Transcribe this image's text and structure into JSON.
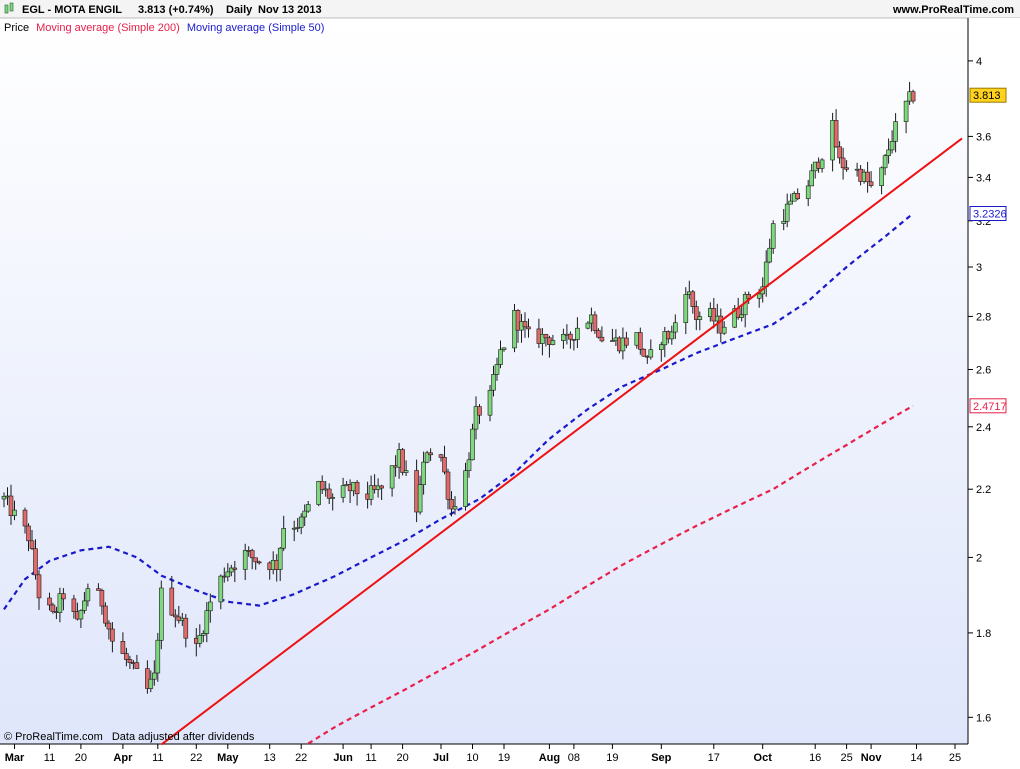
{
  "header": {
    "symbol": "EGL - MOTA ENGIL",
    "quote": "3.813 (+0.74%)",
    "period": "Daily",
    "date": "Nov 13 2013",
    "site": "www.ProRealTime.com"
  },
  "legend": {
    "price": "Price",
    "ma200": "Moving average (Simple 200)",
    "ma50": "Moving average (Simple 50)"
  },
  "footer": {
    "copyright": "© ProRealTime.com",
    "note": "Data adjusted after dividends"
  },
  "colors": {
    "up_candle": "#7ed87e",
    "down_candle": "#e06a6a",
    "ma50": "#1a1acc",
    "ma200": "#e8204a",
    "trendline": "#ee1111",
    "bg_top": "#ffffff",
    "bg_bottom": "#dfe6fb",
    "last_price_badge": "#ffd21e"
  },
  "chart_data": {
    "type": "candlestick",
    "scale": "log",
    "ylim": [
      1.55,
      4.2
    ],
    "y_ticks": [
      1.6,
      1.8,
      2,
      2.2,
      2.4,
      2.6,
      2.8,
      3,
      3.2,
      3.4,
      3.6,
      4
    ],
    "y_tick_labels": [
      "1.6",
      "1.8",
      "2",
      "2.2",
      "2.4",
      "2.6",
      "2.8",
      "3",
      "3.2",
      "3.4",
      "3.6",
      "4"
    ],
    "x_range": [
      "2013-02-26",
      "2013-11-27"
    ],
    "x_ticks": [
      {
        "date": "2013-03-01",
        "label": "Mar",
        "bold": true
      },
      {
        "date": "2013-03-11",
        "label": "11",
        "bold": false
      },
      {
        "date": "2013-03-20",
        "label": "20",
        "bold": false
      },
      {
        "date": "2013-04-01",
        "label": "Apr",
        "bold": true
      },
      {
        "date": "2013-04-11",
        "label": "11",
        "bold": false
      },
      {
        "date": "2013-04-22",
        "label": "22",
        "bold": false
      },
      {
        "date": "2013-05-01",
        "label": "May",
        "bold": true
      },
      {
        "date": "2013-05-13",
        "label": "13",
        "bold": false
      },
      {
        "date": "2013-05-22",
        "label": "22",
        "bold": false
      },
      {
        "date": "2013-06-03",
        "label": "Jun",
        "bold": true
      },
      {
        "date": "2013-06-11",
        "label": "11",
        "bold": false
      },
      {
        "date": "2013-06-20",
        "label": "20",
        "bold": false
      },
      {
        "date": "2013-07-01",
        "label": "Jul",
        "bold": true
      },
      {
        "date": "2013-07-10",
        "label": "10",
        "bold": false
      },
      {
        "date": "2013-07-19",
        "label": "19",
        "bold": false
      },
      {
        "date": "2013-08-01",
        "label": "Aug",
        "bold": true
      },
      {
        "date": "2013-08-08",
        "label": "08",
        "bold": false
      },
      {
        "date": "2013-08-19",
        "label": "19",
        "bold": false
      },
      {
        "date": "2013-09-02",
        "label": "Sep",
        "bold": true
      },
      {
        "date": "2013-09-17",
        "label": "17",
        "bold": false
      },
      {
        "date": "2013-10-01",
        "label": "Oct",
        "bold": true
      },
      {
        "date": "2013-10-16",
        "label": "16",
        "bold": false
      },
      {
        "date": "2013-10-25",
        "label": "25",
        "bold": false
      },
      {
        "date": "2013-11-01",
        "label": "Nov",
        "bold": true
      },
      {
        "date": "2013-11-14",
        "label": "14",
        "bold": false
      },
      {
        "date": "2013-11-25",
        "label": "25",
        "bold": false
      }
    ],
    "last_values": [
      {
        "series": "price",
        "value": 3.813,
        "label": "3.813"
      },
      {
        "series": "ma50",
        "value": 3.2326,
        "label": "3.2326"
      },
      {
        "series": "ma200",
        "value": 2.4717,
        "label": "2.4717"
      }
    ],
    "price_anchors": [
      [
        "2013-02-26",
        2.17
      ],
      [
        "2013-03-01",
        2.12
      ],
      [
        "2013-03-05",
        2.06
      ],
      [
        "2013-03-08",
        1.9
      ],
      [
        "2013-03-12",
        1.84
      ],
      [
        "2013-03-15",
        1.9
      ],
      [
        "2013-03-19",
        1.82
      ],
      [
        "2013-03-22",
        1.92
      ],
      [
        "2013-03-26",
        1.88
      ],
      [
        "2013-03-29",
        1.78
      ],
      [
        "2013-04-03",
        1.72
      ],
      [
        "2013-04-08",
        1.66
      ],
      [
        "2013-04-10",
        1.69
      ],
      [
        "2013-04-12",
        1.9
      ],
      [
        "2013-04-17",
        1.84
      ],
      [
        "2013-04-22",
        1.76
      ],
      [
        "2013-04-26",
        1.88
      ],
      [
        "2013-04-30",
        1.96
      ],
      [
        "2013-05-06",
        2.01
      ],
      [
        "2013-05-10",
        1.99
      ],
      [
        "2013-05-15",
        1.98
      ],
      [
        "2013-05-17",
        2.09
      ],
      [
        "2013-05-22",
        2.1
      ],
      [
        "2013-05-27",
        2.21
      ],
      [
        "2013-05-31",
        2.17
      ],
      [
        "2013-06-05",
        2.2
      ],
      [
        "2013-06-10",
        2.18
      ],
      [
        "2013-06-14",
        2.2
      ],
      [
        "2013-06-19",
        2.3
      ],
      [
        "2013-06-24",
        2.14
      ],
      [
        "2013-06-27",
        2.33
      ],
      [
        "2013-07-01",
        2.3
      ],
      [
        "2013-07-04",
        2.14
      ],
      [
        "2013-07-08",
        2.25
      ],
      [
        "2013-07-11",
        2.44
      ],
      [
        "2013-07-15",
        2.5
      ],
      [
        "2013-07-18",
        2.66
      ],
      [
        "2013-07-22",
        2.8
      ],
      [
        "2013-07-26",
        2.72
      ],
      [
        "2013-07-31",
        2.72
      ],
      [
        "2013-08-06",
        2.7
      ],
      [
        "2013-08-09",
        2.76
      ],
      [
        "2013-08-13",
        2.8
      ],
      [
        "2013-08-16",
        2.72
      ],
      [
        "2013-08-21",
        2.7
      ],
      [
        "2013-08-26",
        2.72
      ],
      [
        "2013-08-29",
        2.62
      ],
      [
        "2013-09-02",
        2.72
      ],
      [
        "2013-09-05",
        2.73
      ],
      [
        "2013-09-09",
        2.92
      ],
      [
        "2013-09-12",
        2.8
      ],
      [
        "2013-09-16",
        2.8
      ],
      [
        "2013-09-19",
        2.76
      ],
      [
        "2013-09-24",
        2.82
      ],
      [
        "2013-09-27",
        2.88
      ],
      [
        "2013-10-01",
        2.92
      ],
      [
        "2013-10-04",
        3.18
      ],
      [
        "2013-10-09",
        3.27
      ],
      [
        "2013-10-14",
        3.37
      ],
      [
        "2013-10-18",
        3.52
      ],
      [
        "2013-10-21",
        3.64
      ],
      [
        "2013-10-23",
        3.47
      ],
      [
        "2013-10-29",
        3.42
      ],
      [
        "2013-11-01",
        3.35
      ],
      [
        "2013-11-04",
        3.42
      ],
      [
        "2013-11-07",
        3.6
      ],
      [
        "2013-11-11",
        3.76
      ],
      [
        "2013-11-13",
        3.813
      ]
    ],
    "ma50_anchors": [
      [
        "2013-02-26",
        1.86
      ],
      [
        "2013-03-04",
        1.94
      ],
      [
        "2013-03-11",
        1.99
      ],
      [
        "2013-03-20",
        2.02
      ],
      [
        "2013-03-28",
        2.03
      ],
      [
        "2013-04-05",
        2.0
      ],
      [
        "2013-04-12",
        1.95
      ],
      [
        "2013-04-22",
        1.91
      ],
      [
        "2013-05-01",
        1.88
      ],
      [
        "2013-05-10",
        1.87
      ],
      [
        "2013-05-20",
        1.9
      ],
      [
        "2013-06-01",
        1.95
      ],
      [
        "2013-06-11",
        2.0
      ],
      [
        "2013-06-21",
        2.05
      ],
      [
        "2013-07-01",
        2.11
      ],
      [
        "2013-07-12",
        2.17
      ],
      [
        "2013-07-22",
        2.25
      ],
      [
        "2013-08-01",
        2.36
      ],
      [
        "2013-08-12",
        2.46
      ],
      [
        "2013-08-22",
        2.54
      ],
      [
        "2013-09-02",
        2.6
      ],
      [
        "2013-09-12",
        2.66
      ],
      [
        "2013-09-24",
        2.72
      ],
      [
        "2013-10-04",
        2.77
      ],
      [
        "2013-10-14",
        2.86
      ],
      [
        "2013-10-25",
        3.0
      ],
      [
        "2013-11-05",
        3.13
      ],
      [
        "2013-11-13",
        3.2326
      ]
    ],
    "ma200_anchors": [
      [
        "2013-05-15",
        1.5
      ],
      [
        "2013-06-01",
        1.58
      ],
      [
        "2013-06-20",
        1.66
      ],
      [
        "2013-07-10",
        1.75
      ],
      [
        "2013-08-01",
        1.86
      ],
      [
        "2013-08-22",
        1.98
      ],
      [
        "2013-09-12",
        2.09
      ],
      [
        "2013-10-04",
        2.2
      ],
      [
        "2013-10-25",
        2.34
      ],
      [
        "2013-11-13",
        2.4717
      ]
    ],
    "trendline": [
      [
        "2013-04-12",
        1.54
      ],
      [
        "2013-11-27",
        3.59
      ]
    ]
  }
}
